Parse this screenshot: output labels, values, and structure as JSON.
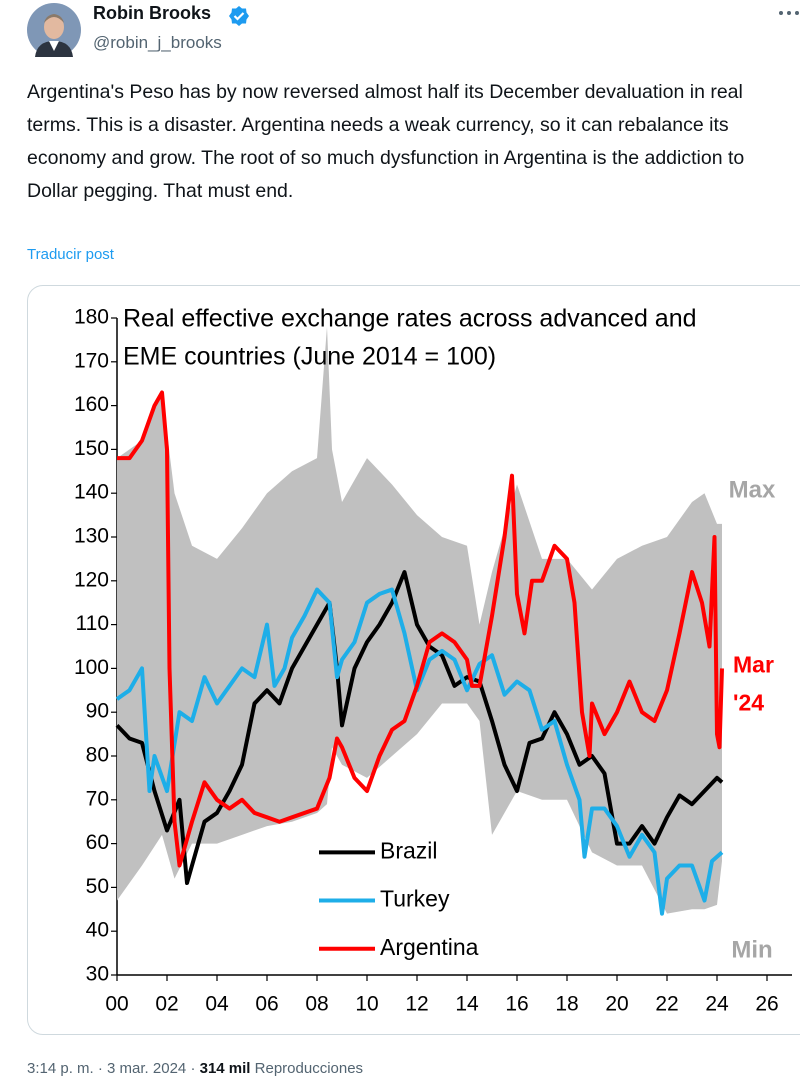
{
  "tweet": {
    "name": "Robin Brooks",
    "handle": "@robin_j_brooks",
    "text": "Argentina's Peso has by now reversed almost half its December devaluation in real terms. This is a disaster. Argentina needs a weak currency, so it can rebalance its economy and grow. The root of so much dysfunction in Argentina is the addiction to Dollar pegging. That must end.",
    "translate": "Traducir post",
    "footer": {
      "time": "3:14 p. m.",
      "separator": "·",
      "date": "3 mar. 2024",
      "views": "314 mil",
      "views_label": "Reproducciones"
    }
  },
  "chart_data": {
    "type": "line",
    "title": [
      "Real effective exchange rates across advanced and",
      "EME countries (June 2014 = 100)"
    ],
    "xlim": [
      2000,
      2027
    ],
    "ylim": [
      30,
      180
    ],
    "xticks": [
      {
        "value": 2000,
        "label": "00"
      },
      {
        "value": 2002,
        "label": "02"
      },
      {
        "value": 2004,
        "label": "04"
      },
      {
        "value": 2006,
        "label": "06"
      },
      {
        "value": 2008,
        "label": "08"
      },
      {
        "value": 2010,
        "label": "10"
      },
      {
        "value": 2012,
        "label": "12"
      },
      {
        "value": 2014,
        "label": "14"
      },
      {
        "value": 2016,
        "label": "16"
      },
      {
        "value": 2018,
        "label": "18"
      },
      {
        "value": 2020,
        "label": "20"
      },
      {
        "value": 2022,
        "label": "22"
      },
      {
        "value": 2024,
        "label": "24"
      },
      {
        "value": 2026,
        "label": "26"
      }
    ],
    "yticks": [
      30,
      40,
      50,
      60,
      70,
      80,
      90,
      100,
      110,
      120,
      130,
      140,
      150,
      160,
      170,
      180
    ],
    "band": {
      "max_label": "Max",
      "min_label": "Min",
      "color": "#c0c0c0",
      "x": [
        2000,
        2001,
        2001.8,
        2002.3,
        2003,
        2004,
        2005,
        2006,
        2007,
        2008,
        2008.4,
        2008.6,
        2009,
        2010,
        2011,
        2012,
        2013,
        2014,
        2014.5,
        2015,
        2016,
        2017,
        2018,
        2019,
        2020,
        2021,
        2022,
        2023,
        2023.5,
        2024,
        2024.2
      ],
      "upper": [
        148,
        152,
        163,
        140,
        128,
        125,
        132,
        140,
        145,
        148,
        178,
        150,
        138,
        148,
        142,
        135,
        130,
        128,
        110,
        122,
        142,
        125,
        125,
        118,
        125,
        128,
        130,
        138,
        140,
        133,
        133
      ],
      "lower": [
        47,
        55,
        62,
        52,
        60,
        60,
        62,
        64,
        65,
        67,
        69,
        82,
        78,
        75,
        80,
        85,
        92,
        92,
        88,
        62,
        72,
        70,
        70,
        58,
        55,
        55,
        44,
        45,
        45,
        46,
        56
      ]
    },
    "series": [
      {
        "name": "Brazil",
        "color": "#000000",
        "x": [
          2000,
          2000.5,
          2001,
          2001.5,
          2002,
          2002.5,
          2002.8,
          2003,
          2003.5,
          2004,
          2004.5,
          2005,
          2005.5,
          2006,
          2006.5,
          2007,
          2007.5,
          2008,
          2008.5,
          2008.8,
          2009,
          2009.5,
          2010,
          2010.5,
          2011,
          2011.5,
          2012,
          2012.5,
          2013,
          2013.5,
          2014,
          2014.5,
          2015,
          2015.5,
          2016,
          2016.5,
          2017,
          2017.5,
          2018,
          2018.5,
          2019,
          2019.5,
          2020,
          2020.5,
          2021,
          2021.5,
          2022,
          2022.5,
          2023,
          2023.5,
          2024,
          2024.2
        ],
        "values": [
          87,
          84,
          83,
          72,
          63,
          70,
          51,
          55,
          65,
          67,
          72,
          78,
          92,
          95,
          92,
          100,
          105,
          110,
          115,
          100,
          87,
          100,
          106,
          110,
          115,
          122,
          110,
          105,
          103,
          96,
          98,
          97,
          88,
          78,
          72,
          83,
          84,
          90,
          85,
          78,
          80,
          76,
          60,
          60,
          64,
          60,
          66,
          71,
          69,
          72,
          75,
          74
        ]
      },
      {
        "name": "Turkey",
        "color": "#1eaee8",
        "x": [
          2000,
          2000.5,
          2001,
          2001.3,
          2001.5,
          2002,
          2002.5,
          2003,
          2003.5,
          2004,
          2004.5,
          2005,
          2005.5,
          2006,
          2006.3,
          2006.7,
          2007,
          2007.5,
          2008,
          2008.5,
          2008.8,
          2009,
          2009.5,
          2010,
          2010.5,
          2011,
          2011.5,
          2012,
          2012.5,
          2013,
          2013.5,
          2014,
          2014.5,
          2015,
          2015.5,
          2016,
          2016.5,
          2017,
          2017.5,
          2018,
          2018.5,
          2018.7,
          2019,
          2019.5,
          2020,
          2020.5,
          2021,
          2021.5,
          2021.8,
          2022,
          2022.5,
          2023,
          2023.5,
          2023.8,
          2024.2
        ],
        "values": [
          93,
          95,
          100,
          72,
          80,
          72,
          90,
          88,
          98,
          92,
          96,
          100,
          98,
          110,
          96,
          100,
          107,
          112,
          118,
          115,
          98,
          102,
          106,
          115,
          117,
          118,
          108,
          95,
          102,
          104,
          102,
          95,
          101,
          103,
          94,
          97,
          95,
          86,
          88,
          78,
          70,
          57,
          68,
          68,
          64,
          57,
          62,
          58,
          44,
          52,
          55,
          55,
          47,
          56,
          58
        ]
      },
      {
        "name": "Argentina",
        "color": "#ff0000",
        "x": [
          2000,
          2000.5,
          2001,
          2001.5,
          2001.8,
          2002,
          2002.1,
          2002.3,
          2002.5,
          2003,
          2003.5,
          2004,
          2004.5,
          2005,
          2005.5,
          2006,
          2006.5,
          2007,
          2007.5,
          2008,
          2008.5,
          2008.8,
          2009,
          2009.5,
          2010,
          2010.5,
          2011,
          2011.5,
          2012,
          2012.5,
          2013,
          2013.5,
          2014,
          2014.2,
          2014.5,
          2015,
          2015.5,
          2015.8,
          2016,
          2016.3,
          2016.6,
          2017,
          2017.5,
          2018,
          2018.3,
          2018.6,
          2018.9,
          2019,
          2019.5,
          2020,
          2020.5,
          2021,
          2021.5,
          2022,
          2022.5,
          2023,
          2023.4,
          2023.7,
          2023.9,
          2024,
          2024.1,
          2024.2
        ],
        "values": [
          148,
          148,
          152,
          160,
          163,
          150,
          100,
          65,
          55,
          65,
          74,
          70,
          68,
          70,
          67,
          66,
          65,
          66,
          67,
          68,
          75,
          84,
          82,
          75,
          72,
          80,
          86,
          88,
          96,
          106,
          108,
          106,
          102,
          96,
          96,
          112,
          130,
          144,
          117,
          108,
          120,
          120,
          128,
          125,
          115,
          90,
          80,
          92,
          85,
          90,
          97,
          90,
          88,
          95,
          108,
          122,
          115,
          105,
          130,
          85,
          82,
          100
        ]
      }
    ],
    "annotation": [
      "Mar",
      "'24"
    ],
    "annotation_color": "#ff0000"
  }
}
